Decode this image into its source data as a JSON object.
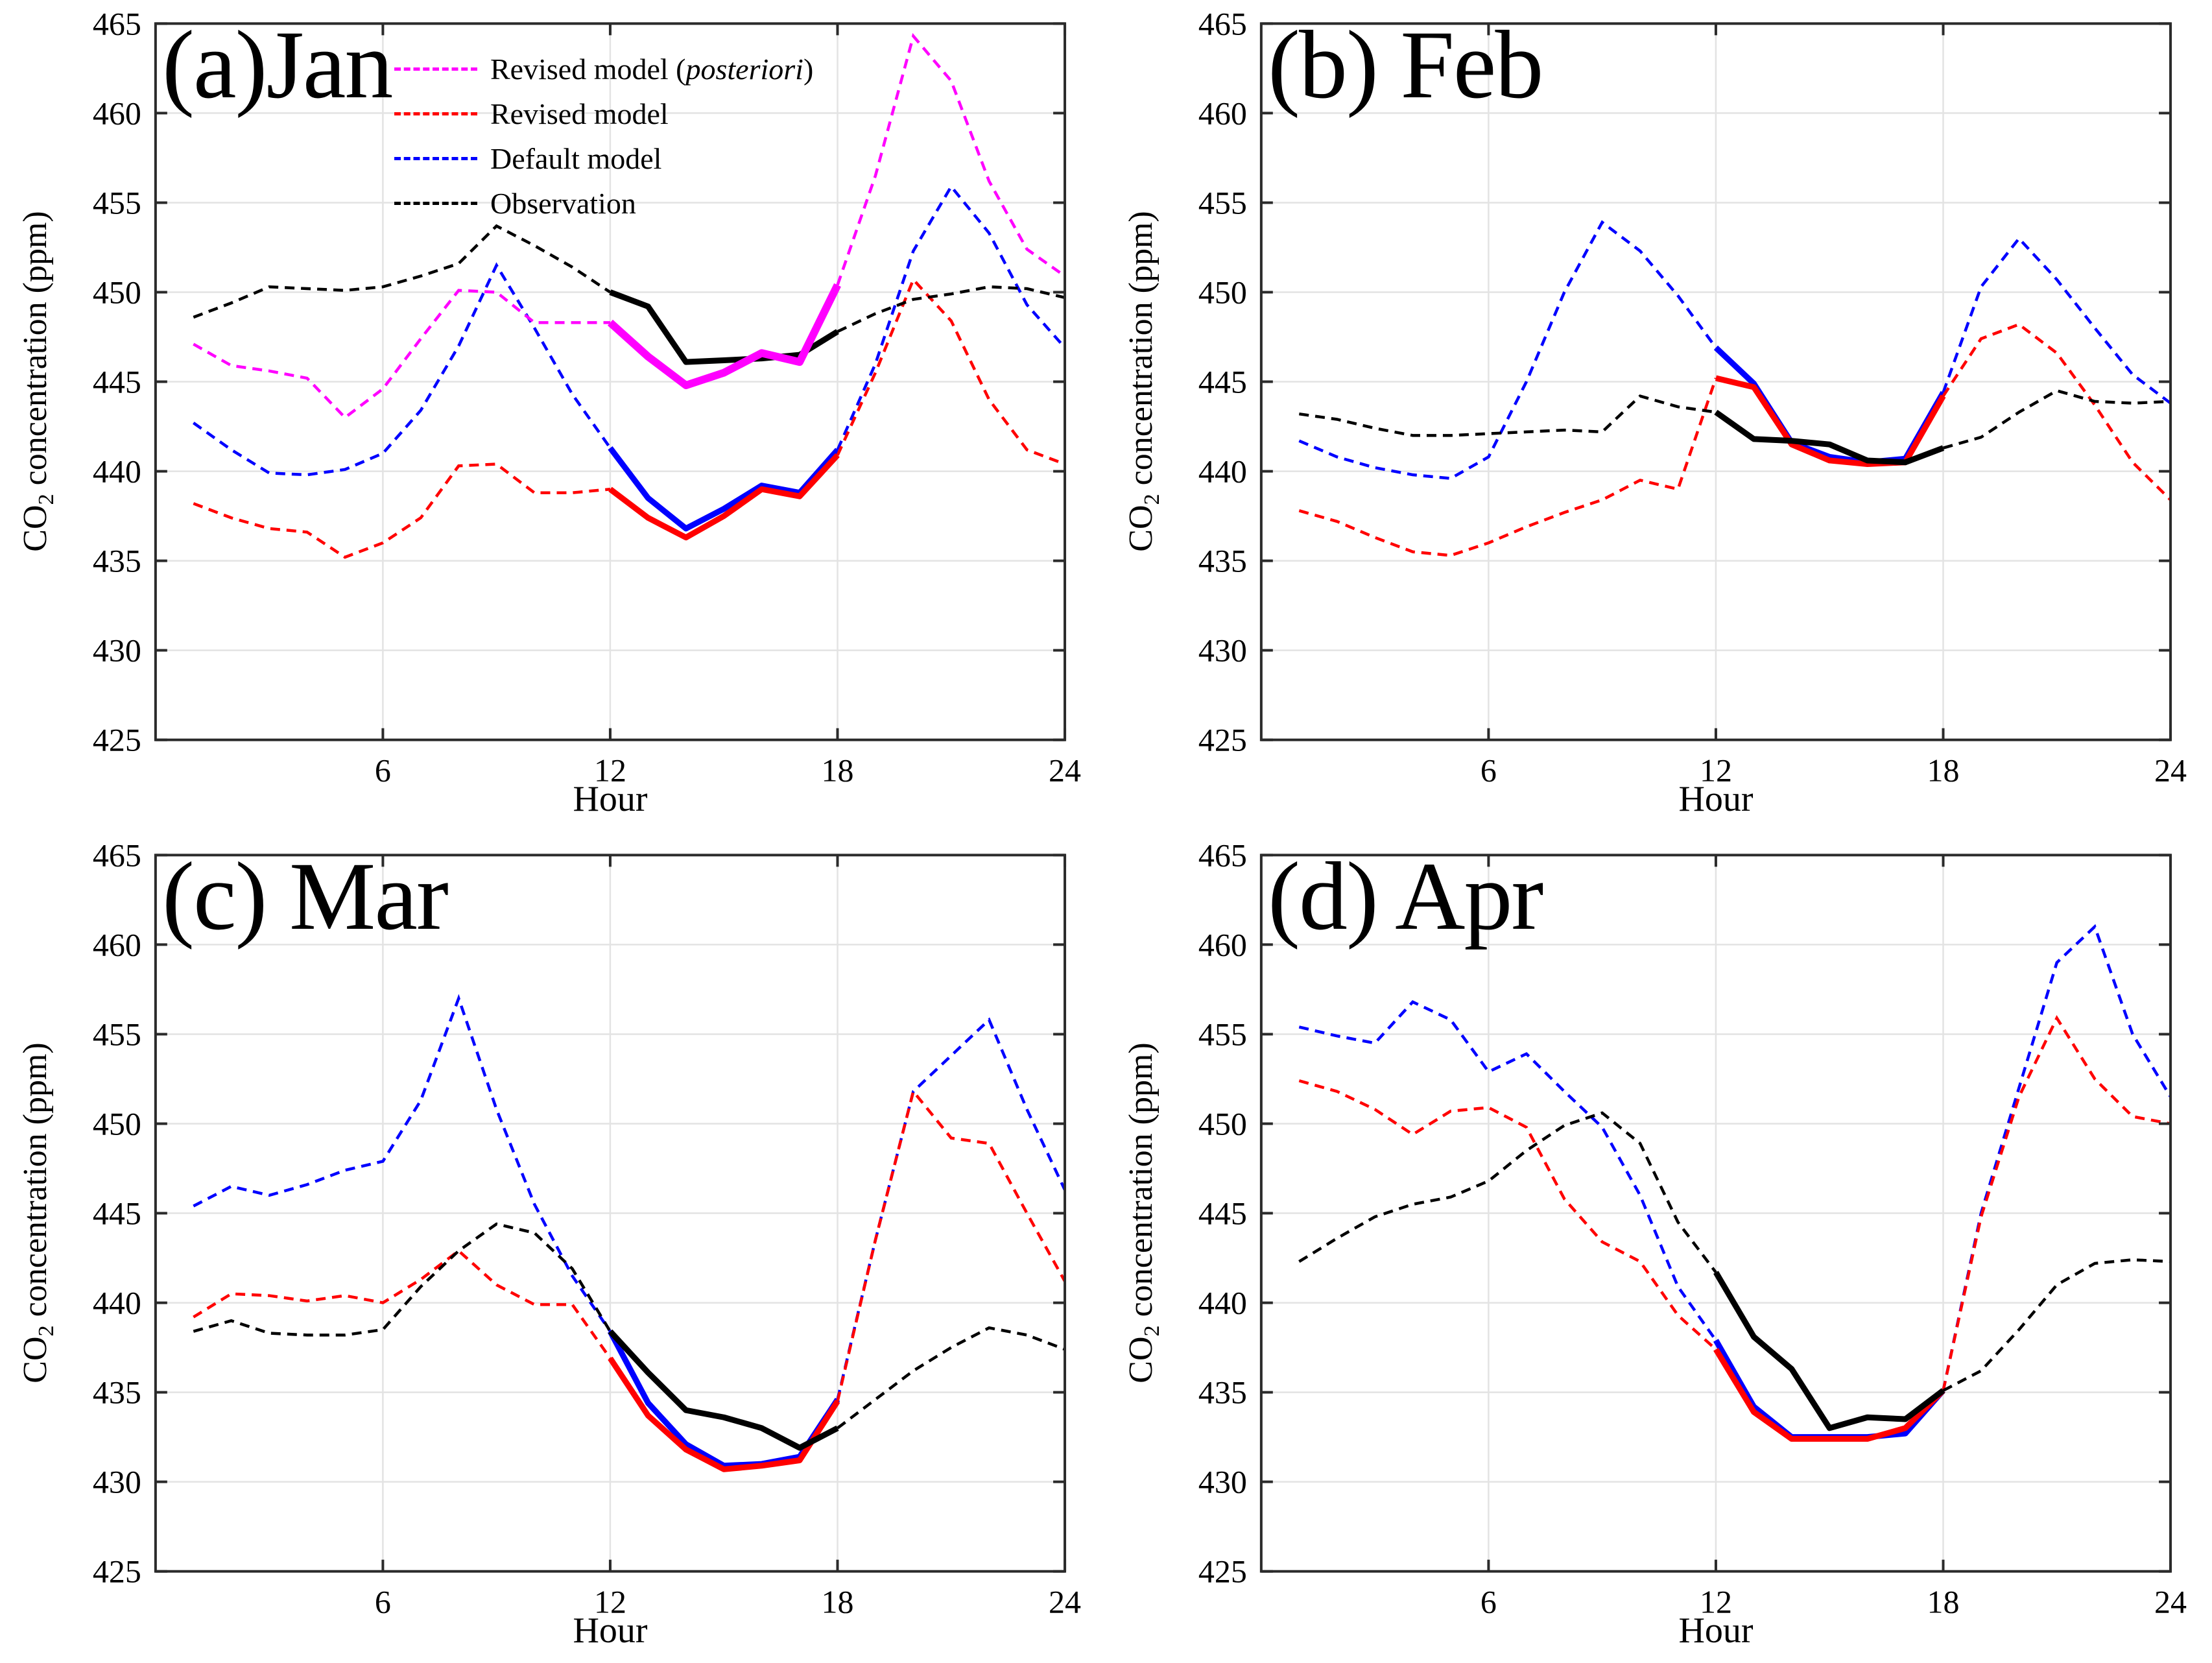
{
  "figure": {
    "xlabel": "Hour",
    "ylabel": {
      "pre": "CO",
      "sub": "2",
      "post": " concentration (ppm)"
    },
    "xticks": [
      6,
      12,
      18,
      24
    ],
    "yticks": [
      425,
      430,
      435,
      440,
      445,
      450,
      455,
      460,
      465
    ],
    "xlim": [
      0,
      24
    ],
    "ylim": [
      425,
      465
    ],
    "solid_hours": [
      12,
      18
    ],
    "grid": "on",
    "axis_color": "#2b2b2b",
    "grid_color": "#e3e3e3",
    "colors": {
      "posteriori": "#ff00ff",
      "revised": "#ff0000",
      "default": "#0000ff",
      "observation": "#000000"
    }
  },
  "legend": {
    "position": "upper-left-inside",
    "items": [
      {
        "pre": "Revised model (",
        "italic": "posteriori",
        "post": ")",
        "color": "#ff00ff"
      },
      {
        "pre": "Revised model",
        "italic": "",
        "post": "",
        "color": "#ff0000"
      },
      {
        "pre": "Default model",
        "italic": "",
        "post": "",
        "color": "#0000ff"
      },
      {
        "pre": "Observation",
        "italic": "",
        "post": "",
        "color": "#000000"
      }
    ]
  },
  "chart_data": [
    {
      "type": "line",
      "title": "(a)Jan",
      "xlabel": "Hour",
      "x_hours": [
        1,
        2,
        3,
        4,
        5,
        6,
        7,
        8,
        9,
        10,
        11,
        12,
        13,
        14,
        15,
        16,
        17,
        18,
        19,
        20,
        21,
        22,
        23,
        24
      ],
      "note_linestyle": "dashed all day, thick solid from hour 12 to 18",
      "series": [
        {
          "name": "Default model",
          "color": "#0000ff",
          "values": [
            442.7,
            441.2,
            439.9,
            439.8,
            440.1,
            441.0,
            443.4,
            447.0,
            451.5,
            448.0,
            444.3,
            441.3,
            438.5,
            436.8,
            437.9,
            439.2,
            438.8,
            441.2,
            446.0,
            452.3,
            455.9,
            453.3,
            449.3,
            446.9
          ]
        },
        {
          "name": "Revised model",
          "color": "#ff0000",
          "values": [
            438.2,
            437.4,
            436.8,
            436.6,
            435.2,
            436.0,
            437.4,
            440.3,
            440.4,
            438.8,
            438.8,
            439.0,
            437.4,
            436.3,
            437.5,
            439.0,
            438.6,
            440.9,
            445.5,
            450.7,
            448.4,
            444.0,
            441.2,
            440.4
          ]
        },
        {
          "name": "Observation",
          "color": "#000000",
          "values": [
            448.6,
            449.4,
            450.3,
            450.2,
            450.1,
            450.3,
            450.9,
            451.6,
            453.7,
            452.6,
            451.4,
            450.0,
            449.2,
            446.1,
            446.2,
            446.3,
            446.5,
            447.8,
            448.8,
            449.6,
            449.9,
            450.3,
            450.2,
            449.7
          ]
        },
        {
          "name": "Revised model (posteriori)",
          "color": "#ff00ff",
          "values": [
            447.1,
            445.9,
            445.6,
            445.2,
            443.0,
            444.6,
            447.4,
            450.1,
            450.0,
            448.3,
            448.3,
            448.3,
            446.4,
            444.8,
            445.5,
            446.6,
            446.1,
            450.4,
            456.5,
            464.3,
            461.8,
            456.2,
            452.4,
            450.9
          ]
        }
      ]
    },
    {
      "type": "line",
      "title": "(b) Feb",
      "xlabel": "Hour",
      "x_hours": [
        1,
        2,
        3,
        4,
        5,
        6,
        7,
        8,
        9,
        10,
        11,
        12,
        13,
        14,
        15,
        16,
        17,
        18,
        19,
        20,
        21,
        22,
        23,
        24
      ],
      "series": [
        {
          "name": "Default model",
          "color": "#0000ff",
          "values": [
            441.7,
            440.8,
            440.2,
            439.8,
            439.6,
            440.8,
            445.0,
            450.0,
            453.9,
            452.3,
            449.8,
            446.9,
            444.9,
            441.6,
            440.8,
            440.5,
            440.7,
            444.4,
            450.3,
            453.0,
            450.7,
            448.0,
            445.4,
            443.8
          ]
        },
        {
          "name": "Revised model",
          "color": "#ff0000",
          "values": [
            437.8,
            437.2,
            436.3,
            435.5,
            435.3,
            436.0,
            436.9,
            437.7,
            438.4,
            439.5,
            439.0,
            445.2,
            444.7,
            441.5,
            440.6,
            440.4,
            440.5,
            444.2,
            447.4,
            448.2,
            446.6,
            443.7,
            440.5,
            438.4
          ]
        },
        {
          "name": "Observation",
          "color": "#000000",
          "values": [
            443.2,
            442.9,
            442.4,
            442.0,
            442.0,
            442.1,
            442.2,
            442.3,
            442.2,
            444.2,
            443.6,
            443.3,
            441.8,
            441.7,
            441.5,
            440.6,
            440.5,
            441.3,
            441.9,
            443.3,
            444.5,
            443.9,
            443.8,
            443.9
          ]
        }
      ]
    },
    {
      "type": "line",
      "title": "(c) Mar",
      "xlabel": "Hour",
      "x_hours": [
        1,
        2,
        3,
        4,
        5,
        6,
        7,
        8,
        9,
        10,
        11,
        12,
        13,
        14,
        15,
        16,
        17,
        18,
        19,
        20,
        21,
        22,
        23,
        24
      ],
      "series": [
        {
          "name": "Default model",
          "color": "#0000ff",
          "values": [
            445.4,
            446.5,
            446.0,
            446.6,
            447.4,
            447.9,
            451.3,
            457.0,
            450.8,
            445.5,
            441.5,
            438.4,
            434.4,
            432.1,
            430.9,
            431.0,
            431.4,
            434.6,
            443.5,
            451.8,
            453.8,
            455.8,
            450.8,
            446.3
          ]
        },
        {
          "name": "Revised model",
          "color": "#ff0000",
          "values": [
            439.2,
            440.5,
            440.4,
            440.1,
            440.4,
            440.0,
            441.3,
            442.9,
            441.0,
            439.9,
            439.9,
            436.9,
            433.7,
            431.8,
            430.7,
            430.9,
            431.2,
            434.5,
            443.5,
            451.8,
            449.2,
            448.9,
            445.0,
            441.2
          ]
        },
        {
          "name": "Observation",
          "color": "#000000",
          "values": [
            438.4,
            439.0,
            438.3,
            438.2,
            438.2,
            438.5,
            440.9,
            442.9,
            444.4,
            443.9,
            441.9,
            438.4,
            436.1,
            434.0,
            433.6,
            433.0,
            431.9,
            433.0,
            434.6,
            436.2,
            437.5,
            438.6,
            438.2,
            437.4
          ]
        }
      ]
    },
    {
      "type": "line",
      "title": "(d) Apr",
      "xlabel": "Hour",
      "x_hours": [
        1,
        2,
        3,
        4,
        5,
        6,
        7,
        8,
        9,
        10,
        11,
        12,
        13,
        14,
        15,
        16,
        17,
        18,
        19,
        20,
        21,
        22,
        23,
        24
      ],
      "series": [
        {
          "name": "Default model",
          "color": "#0000ff",
          "values": [
            455.4,
            454.9,
            454.5,
            456.8,
            455.8,
            452.9,
            453.9,
            451.8,
            449.8,
            446.0,
            440.9,
            437.9,
            434.2,
            432.5,
            432.5,
            432.5,
            432.7,
            435.1,
            445.0,
            452.0,
            459.0,
            461.0,
            455.0,
            451.5
          ]
        },
        {
          "name": "Revised model",
          "color": "#ff0000",
          "values": [
            452.4,
            451.8,
            450.8,
            449.4,
            450.7,
            450.9,
            449.8,
            445.8,
            443.4,
            442.3,
            439.3,
            437.4,
            433.9,
            432.4,
            432.4,
            432.4,
            433.0,
            435.1,
            444.8,
            451.5,
            455.9,
            452.5,
            450.4,
            450.0
          ]
        },
        {
          "name": "Observation",
          "color": "#000000",
          "values": [
            442.3,
            443.6,
            444.8,
            445.5,
            445.9,
            446.8,
            448.5,
            449.9,
            450.6,
            448.9,
            444.5,
            441.7,
            438.1,
            436.3,
            433.0,
            433.6,
            433.5,
            435.1,
            436.2,
            438.5,
            441.0,
            442.2,
            442.4,
            442.3
          ]
        }
      ]
    }
  ]
}
